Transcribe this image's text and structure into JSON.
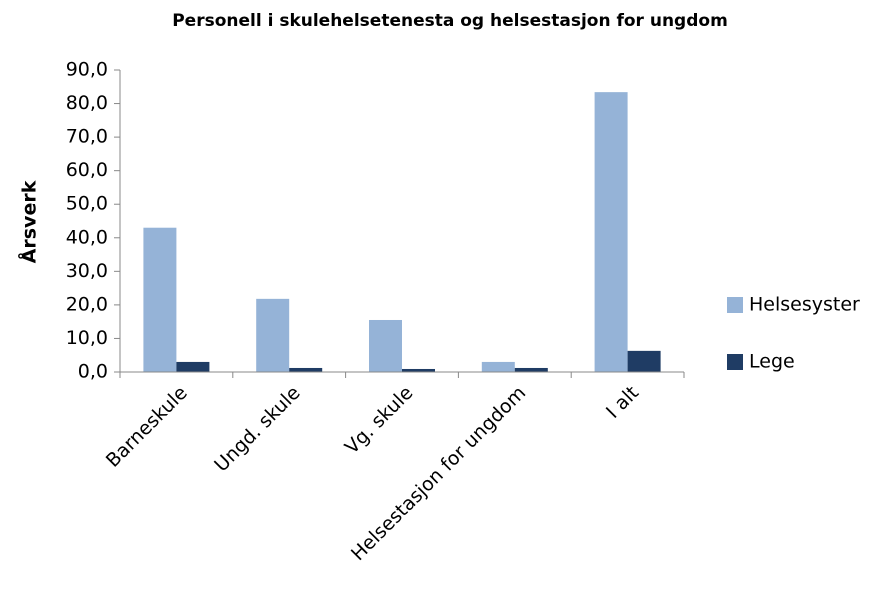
{
  "chart_data": {
    "type": "bar",
    "title": "Personell i skulehelsetenesta og helsestasjon for ungdom",
    "y_label": "Årsverk",
    "categories": [
      "Barneskule",
      "Ungd. skule",
      "Vg. skule",
      "Helsestasjon for ungdom",
      "I alt"
    ],
    "series": [
      {
        "name": "Helsesyster",
        "color": "#95b3d7",
        "values": [
          43.0,
          21.8,
          15.5,
          3.0,
          83.4
        ]
      },
      {
        "name": "Lege",
        "color": "#1f3c64",
        "values": [
          3.0,
          1.2,
          0.9,
          1.2,
          6.3
        ]
      }
    ],
    "ylim": [
      0,
      90
    ],
    "yticks": [
      {
        "value": 0,
        "label": "0,0"
      },
      {
        "value": 10,
        "label": "10,0"
      },
      {
        "value": 20,
        "label": "20,0"
      },
      {
        "value": 30,
        "label": "30,0"
      },
      {
        "value": 40,
        "label": "40,0"
      },
      {
        "value": 50,
        "label": "50,0"
      },
      {
        "value": 60,
        "label": "60,0"
      },
      {
        "value": 70,
        "label": "70,0"
      },
      {
        "value": 80,
        "label": "80,0"
      },
      {
        "value": 90,
        "label": "90,0"
      }
    ],
    "legend": "right"
  }
}
